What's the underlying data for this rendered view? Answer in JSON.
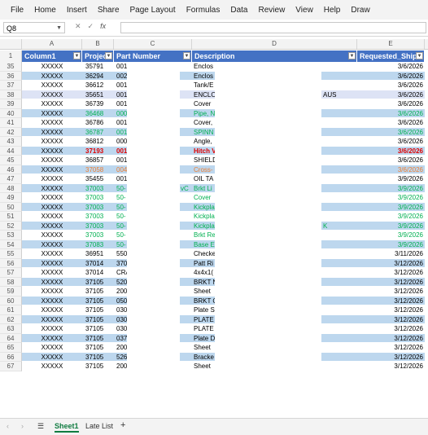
{
  "menu": [
    "File",
    "Home",
    "Insert",
    "Share",
    "Page Layout",
    "Formulas",
    "Data",
    "Review",
    "View",
    "Help",
    "Draw"
  ],
  "name_box": "Q8",
  "formula_bar": {
    "cancel_icon": "✕",
    "enter_icon": "✓",
    "fx_label": "fx",
    "value": ""
  },
  "column_letters": [
    "A",
    "B",
    "C",
    "D",
    "E"
  ],
  "table_headers": {
    "a": "Column1",
    "b": "Projec",
    "c": "Part Number",
    "d": "Description",
    "e": "Requested_Ship"
  },
  "rows": [
    {
      "n": "35",
      "a": "XXXXX",
      "b": "35791",
      "c": "001",
      "d": "Enclos",
      "e": "3/6/2026",
      "style": "plain",
      "color": ""
    },
    {
      "n": "36",
      "a": "XXXXX",
      "b": "36294",
      "c": "002",
      "d": "Enclos",
      "e": "3/6/2026",
      "style": "band",
      "color": ""
    },
    {
      "n": "37",
      "a": "XXXXX",
      "b": "36612",
      "c": "001",
      "d": "Tank/E",
      "e": "3/6/2026",
      "style": "plain",
      "color": ""
    },
    {
      "n": "38",
      "a": "XXXXX",
      "b": "35651",
      "c": "001",
      "d": "ENCLO",
      "d2": "AUS",
      "e": "3/6/2026",
      "style": "sel",
      "color": ""
    },
    {
      "n": "39",
      "a": "XXXXX",
      "b": "36739",
      "c": "001",
      "d": "Cover",
      "e": "3/6/2026",
      "style": "plain",
      "color": ""
    },
    {
      "n": "40",
      "a": "XXXXX",
      "b": "36468",
      "c": "000",
      "d": "Pipe, N",
      "e": "3/6/2026",
      "style": "band",
      "color": "green"
    },
    {
      "n": "41",
      "a": "XXXXX",
      "b": "36786",
      "c": "001",
      "d": "Cover,",
      "e": "3/6/2026",
      "style": "plain",
      "color": ""
    },
    {
      "n": "42",
      "a": "XXXXX",
      "b": "36787",
      "c": "001",
      "d": "SPINN",
      "e": "3/6/2026",
      "style": "band",
      "color": "green"
    },
    {
      "n": "43",
      "a": "XXXXX",
      "b": "36812",
      "c": "000",
      "d": "Angle,",
      "e": "3/6/2026",
      "style": "plain",
      "color": ""
    },
    {
      "n": "44",
      "a": "XXXXX",
      "b": "37193",
      "c": "001",
      "d": "Hitch V",
      "e": "3/6/2026",
      "style": "band",
      "color": "red"
    },
    {
      "n": "45",
      "a": "XXXXX",
      "b": "36857",
      "c": "001",
      "d": "SHIELD",
      "e": "3/6/2026",
      "style": "plain",
      "color": ""
    },
    {
      "n": "46",
      "a": "XXXXX",
      "b": "37058",
      "c": "004",
      "d": "Cross-",
      "e": "3/6/2026",
      "style": "band",
      "color": "orange"
    },
    {
      "n": "47",
      "a": "XXXXX",
      "b": "35455",
      "c": "001",
      "d": "OIL TA",
      "e": "3/9/2026",
      "style": "plain",
      "color": ""
    },
    {
      "n": "48",
      "a": "XXXXX",
      "b": "37003",
      "c": "50-",
      "c2": "vC",
      "d": "Brkt Li",
      "e": "3/9/2026",
      "style": "band",
      "color": "green"
    },
    {
      "n": "49",
      "a": "XXXXX",
      "b": "37003",
      "c": "50-",
      "d": "Cover",
      "e": "3/9/2026",
      "style": "plain",
      "color": "green"
    },
    {
      "n": "50",
      "a": "XXXXX",
      "b": "37003",
      "c": "50-",
      "d": "Kickpla",
      "e": "3/9/2026",
      "style": "band",
      "color": "green"
    },
    {
      "n": "51",
      "a": "XXXXX",
      "b": "37003",
      "c": "50-",
      "d": "Kickpla",
      "e": "3/9/2026",
      "style": "plain",
      "color": "green"
    },
    {
      "n": "52",
      "a": "XXXXX",
      "b": "37003",
      "c": "50-",
      "d": "Kickpla",
      "d2": "K",
      "e": "3/9/2026",
      "style": "band",
      "color": "green"
    },
    {
      "n": "53",
      "a": "XXXXX",
      "b": "37003",
      "c": "50-",
      "d": "Brkt Re",
      "e": "3/9/2026",
      "style": "plain",
      "color": "green"
    },
    {
      "n": "54",
      "a": "XXXXX",
      "b": "37083",
      "c": "50-",
      "d": "Base E",
      "e": "3/9/2026",
      "style": "band",
      "color": "green"
    },
    {
      "n": "55",
      "a": "XXXXX",
      "b": "36951",
      "c": "550",
      "d": "Checke",
      "e": "3/11/2026",
      "style": "plain",
      "color": ""
    },
    {
      "n": "56",
      "a": "XXXXX",
      "b": "37014",
      "c": "370",
      "d": "Patt Ri",
      "e": "3/12/2026",
      "style": "band",
      "color": ""
    },
    {
      "n": "57",
      "a": "XXXXX",
      "b": "37014",
      "c": "CRA",
      "d": "4x4x1(",
      "e": "3/12/2026",
      "style": "plain",
      "color": ""
    },
    {
      "n": "58",
      "a": "XXXXX",
      "b": "37105",
      "c": "520",
      "d": "BRKT N",
      "e": "3/12/2026",
      "style": "band",
      "color": ""
    },
    {
      "n": "59",
      "a": "XXXXX",
      "b": "37105",
      "c": "200",
      "d": "Sheet",
      "e": "3/12/2026",
      "style": "plain",
      "color": ""
    },
    {
      "n": "60",
      "a": "XXXXX",
      "b": "37105",
      "c": "050",
      "d": "BRKT C",
      "e": "3/12/2026",
      "style": "band",
      "color": ""
    },
    {
      "n": "61",
      "a": "XXXXX",
      "b": "37105",
      "c": "030",
      "d": "Plate S",
      "e": "3/12/2026",
      "style": "plain",
      "color": ""
    },
    {
      "n": "62",
      "a": "XXXXX",
      "b": "37105",
      "c": "030",
      "d": "PLATE",
      "e": "3/12/2026",
      "style": "band",
      "color": ""
    },
    {
      "n": "63",
      "a": "XXXXX",
      "b": "37105",
      "c": "030",
      "d": "PLATE",
      "e": "3/12/2026",
      "style": "plain",
      "color": ""
    },
    {
      "n": "64",
      "a": "XXXXX",
      "b": "37105",
      "c": "037",
      "d": "Plate D",
      "e": "3/12/2026",
      "style": "band",
      "color": ""
    },
    {
      "n": "65",
      "a": "XXXXX",
      "b": "37105",
      "c": "200",
      "d": "Sheet",
      "e": "3/12/2026",
      "style": "plain",
      "color": ""
    },
    {
      "n": "66",
      "a": "XXXXX",
      "b": "37105",
      "c": "526",
      "d": "Bracke",
      "e": "3/12/2026",
      "style": "band",
      "color": ""
    },
    {
      "n": "67",
      "a": "XXXXX",
      "b": "37105",
      "c": "200",
      "d": "Sheet",
      "e": "3/12/2026",
      "style": "plain",
      "color": ""
    }
  ],
  "sheet_tabs": [
    "Sheet1",
    "Late List"
  ],
  "active_sheet": "Sheet1",
  "icons": {
    "prev": "‹",
    "next": "›",
    "menu": "☰",
    "add": "+"
  },
  "colors": {
    "header_blue": "#4472c4",
    "band": "#bdd7ee",
    "green_text": "#00b050",
    "red_text": "#e00000",
    "orange_text": "#ed7d31"
  }
}
